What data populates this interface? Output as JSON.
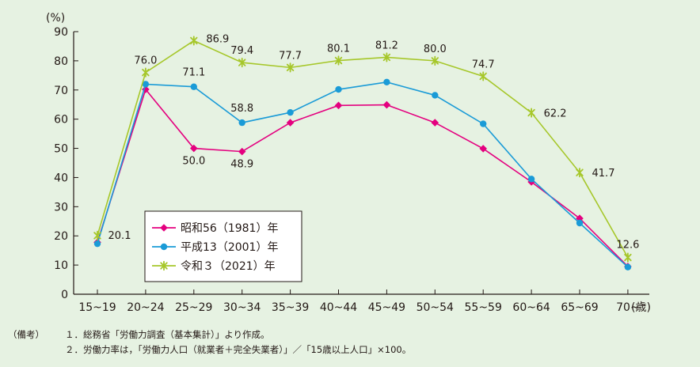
{
  "chart_data": {
    "type": "line",
    "y_unit": "(%)",
    "x_unit": "(歳)",
    "categories": [
      "15~19",
      "20~24",
      "25~29",
      "30~34",
      "35~39",
      "40~44",
      "45~49",
      "50~54",
      "55~59",
      "60~64",
      "65~69",
      "70~"
    ],
    "ylim": [
      0,
      90
    ],
    "yticks": [
      0,
      10,
      20,
      30,
      40,
      50,
      60,
      70,
      80,
      90
    ],
    "grid": false,
    "legend_position": "bottom-left",
    "series": [
      {
        "name": "昭和56（1981）年",
        "color": "#e4007f",
        "marker": "diamond",
        "values": [
          17.8,
          70.2,
          50.0,
          48.9,
          58.8,
          64.7,
          64.9,
          58.8,
          49.9,
          38.5,
          26.0,
          9.5
        ],
        "labels": [
          "",
          "",
          "50.0",
          "48.9",
          "",
          "",
          "",
          "",
          "",
          "",
          "",
          ""
        ]
      },
      {
        "name": "平成13（2001）年",
        "color": "#1a9bd7",
        "marker": "circle",
        "values": [
          17.3,
          72.0,
          71.1,
          58.8,
          62.3,
          70.2,
          72.7,
          68.2,
          58.4,
          39.5,
          24.4,
          9.3
        ],
        "labels": [
          "",
          "",
          "71.1",
          "58.8",
          "",
          "",
          "",
          "",
          "",
          "",
          "",
          ""
        ]
      },
      {
        "name": "令和３（2021）年",
        "color": "#a6c72a",
        "marker": "star",
        "values": [
          20.1,
          76.0,
          86.9,
          79.4,
          77.7,
          80.1,
          81.2,
          80.0,
          74.7,
          62.2,
          41.7,
          12.6
        ],
        "labels": [
          "20.1",
          "76.0",
          "86.9",
          "79.4",
          "77.7",
          "80.1",
          "81.2",
          "80.0",
          "74.7",
          "62.2",
          "41.7",
          "12.6"
        ]
      }
    ]
  },
  "notes": {
    "head": "（備考）",
    "items": [
      "１．総務省「労働力調査（基本集計）」より作成。",
      "２．労働力率は，「労働力人口（就業者＋完全失業者）」／「15歳以上人口」×100。"
    ]
  }
}
